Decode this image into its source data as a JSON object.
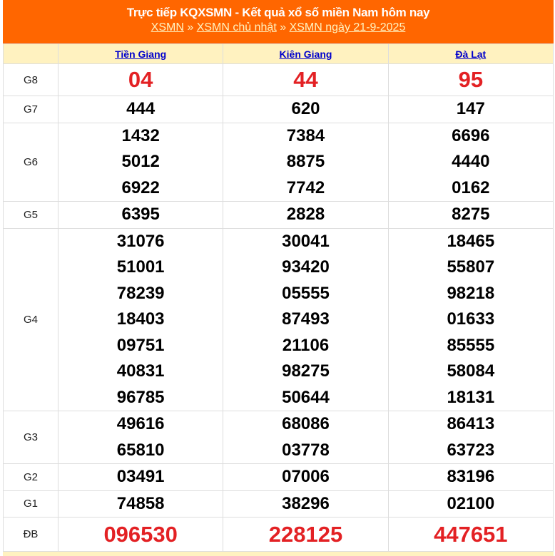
{
  "header": {
    "title": "Trực tiếp KQXSMN - Kết quả xổ số miền Nam hôm nay",
    "breadcrumb": [
      "XSMN",
      "XSMN chủ nhật",
      "XSMN ngày 21-9-2025"
    ],
    "separator": "»"
  },
  "provinces": [
    "Tiền Giang",
    "Kiên Giang",
    "Đà Lạt"
  ],
  "colors": {
    "header_bg": "#ff6600",
    "highlight": "#e32124",
    "table_header_bg": "#fff2c0"
  },
  "prizes": [
    {
      "label": "G8",
      "style": "red",
      "values": [
        [
          "04"
        ],
        [
          "44"
        ],
        [
          "95"
        ]
      ]
    },
    {
      "label": "G7",
      "values": [
        [
          "444"
        ],
        [
          "620"
        ],
        [
          "147"
        ]
      ]
    },
    {
      "label": "G6",
      "values": [
        [
          "1432",
          "5012",
          "6922"
        ],
        [
          "7384",
          "8875",
          "7742"
        ],
        [
          "6696",
          "4440",
          "0162"
        ]
      ]
    },
    {
      "label": "G5",
      "values": [
        [
          "6395"
        ],
        [
          "2828"
        ],
        [
          "8275"
        ]
      ]
    },
    {
      "label": "G4",
      "values": [
        [
          "31076",
          "51001",
          "78239",
          "18403",
          "09751",
          "40831",
          "96785"
        ],
        [
          "30041",
          "93420",
          "05555",
          "87493",
          "21106",
          "98275",
          "50644"
        ],
        [
          "18465",
          "55807",
          "98218",
          "01633",
          "85555",
          "58084",
          "18131"
        ]
      ]
    },
    {
      "label": "G3",
      "values": [
        [
          "49616",
          "65810"
        ],
        [
          "68086",
          "03778"
        ],
        [
          "86413",
          "63723"
        ]
      ]
    },
    {
      "label": "G2",
      "values": [
        [
          "03491"
        ],
        [
          "07006"
        ],
        [
          "83196"
        ]
      ]
    },
    {
      "label": "G1",
      "values": [
        [
          "74858"
        ],
        [
          "38296"
        ],
        [
          "02100"
        ]
      ]
    },
    {
      "label": "ĐB",
      "style": "db",
      "values": [
        [
          "096530"
        ],
        [
          "228125"
        ],
        [
          "447651"
        ]
      ]
    }
  ]
}
